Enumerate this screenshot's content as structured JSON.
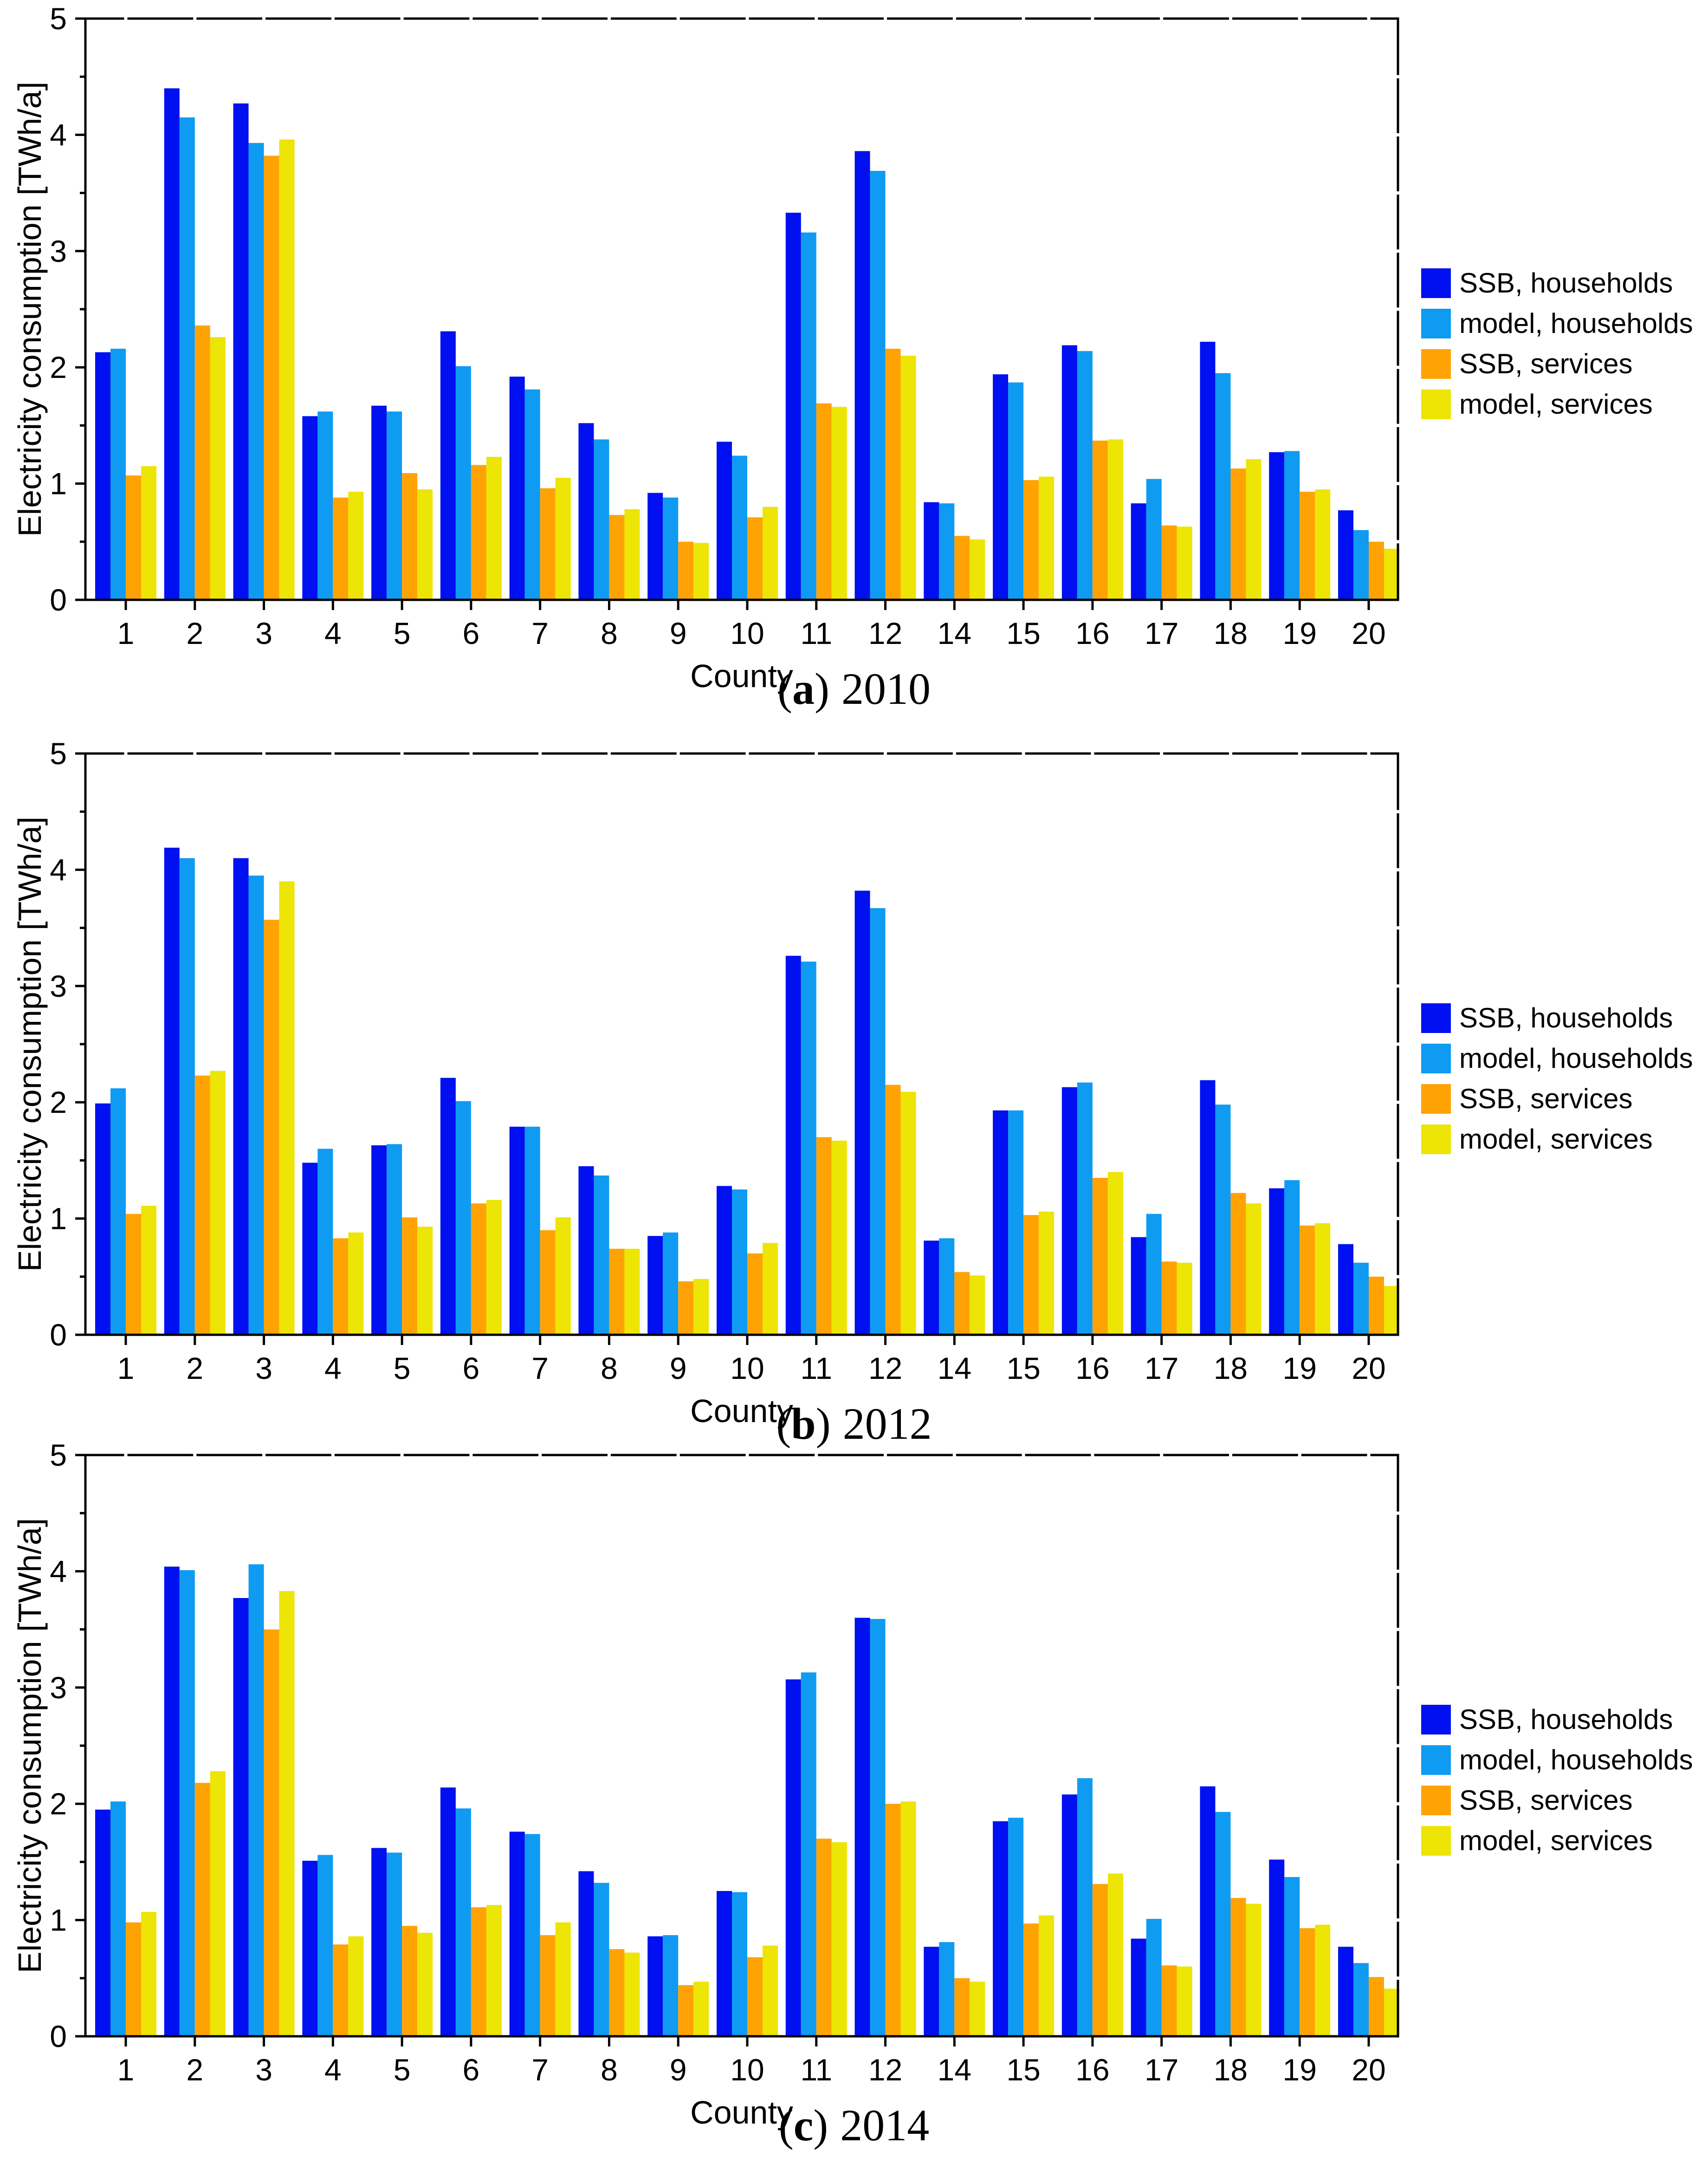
{
  "figure": {
    "background": "#ffffff",
    "axis_color": "#000000"
  },
  "series_colors": {
    "ssb_households": "#0010F0",
    "model_households": "#0F9BF2",
    "ssb_services": "#FFA305",
    "model_services": "#EDE505"
  },
  "chart_data": [
    {
      "type": "bar",
      "caption": {
        "open": "(",
        "letter": "a",
        "close": ")",
        "year": "2010"
      },
      "xlabel": "County",
      "ylabel": "Electricity consumption [TWh/a]",
      "ylim": [
        0,
        5
      ],
      "yticks": [
        0,
        1,
        2,
        3,
        4,
        5
      ],
      "grid": false,
      "legend_position": "right",
      "categories": [
        "1",
        "2",
        "3",
        "4",
        "5",
        "6",
        "7",
        "8",
        "9",
        "10",
        "11",
        "12",
        "14",
        "15",
        "16",
        "17",
        "18",
        "19",
        "20"
      ],
      "series": [
        {
          "name": "SSB, households",
          "color": "#0010F0",
          "values": [
            2.13,
            4.4,
            4.27,
            1.58,
            1.67,
            2.31,
            1.92,
            1.52,
            0.92,
            1.36,
            3.33,
            3.86,
            0.84,
            1.94,
            2.19,
            0.83,
            2.22,
            1.27,
            0.77
          ]
        },
        {
          "name": "model, households",
          "color": "#0F9BF2",
          "values": [
            2.16,
            4.15,
            3.93,
            1.62,
            1.62,
            2.01,
            1.81,
            1.38,
            0.88,
            1.24,
            3.16,
            3.69,
            0.83,
            1.87,
            2.14,
            1.04,
            1.95,
            1.28,
            0.6
          ]
        },
        {
          "name": "SSB, services",
          "color": "#FFA305",
          "values": [
            1.07,
            2.36,
            3.82,
            0.88,
            1.09,
            1.16,
            0.96,
            0.73,
            0.5,
            0.71,
            1.69,
            2.16,
            0.55,
            1.03,
            1.37,
            0.64,
            1.13,
            0.93,
            0.5
          ]
        },
        {
          "name": "model, services",
          "color": "#EDE505",
          "values": [
            1.15,
            2.26,
            3.96,
            0.93,
            0.95,
            1.23,
            1.05,
            0.78,
            0.49,
            0.8,
            1.66,
            2.1,
            0.52,
            1.06,
            1.38,
            0.63,
            1.21,
            0.95,
            0.44
          ]
        }
      ]
    },
    {
      "type": "bar",
      "caption": {
        "open": "(",
        "letter": "b",
        "close": ")",
        "year": "2012"
      },
      "xlabel": "County",
      "ylabel": "Electricity consumption [TWh/a]",
      "ylim": [
        0,
        5
      ],
      "yticks": [
        0,
        1,
        2,
        3,
        4,
        5
      ],
      "grid": false,
      "legend_position": "right",
      "categories": [
        "1",
        "2",
        "3",
        "4",
        "5",
        "6",
        "7",
        "8",
        "9",
        "10",
        "11",
        "12",
        "14",
        "15",
        "16",
        "17",
        "18",
        "19",
        "20"
      ],
      "series": [
        {
          "name": "SSB, households",
          "color": "#0010F0",
          "values": [
            1.99,
            4.19,
            4.1,
            1.48,
            1.63,
            2.21,
            1.79,
            1.45,
            0.85,
            1.28,
            3.26,
            3.82,
            0.81,
            1.93,
            2.13,
            0.84,
            2.19,
            1.26,
            0.78
          ]
        },
        {
          "name": "model, households",
          "color": "#0F9BF2",
          "values": [
            2.12,
            4.1,
            3.95,
            1.6,
            1.64,
            2.01,
            1.79,
            1.37,
            0.88,
            1.25,
            3.21,
            3.67,
            0.83,
            1.93,
            2.17,
            1.04,
            1.98,
            1.33,
            0.62
          ]
        },
        {
          "name": "SSB, services",
          "color": "#FFA305",
          "values": [
            1.04,
            2.23,
            3.57,
            0.83,
            1.01,
            1.13,
            0.9,
            0.74,
            0.46,
            0.7,
            1.7,
            2.15,
            0.54,
            1.03,
            1.35,
            0.63,
            1.22,
            0.94,
            0.5
          ]
        },
        {
          "name": "model, services",
          "color": "#EDE505",
          "values": [
            1.11,
            2.27,
            3.9,
            0.88,
            0.93,
            1.16,
            1.01,
            0.74,
            0.48,
            0.79,
            1.67,
            2.09,
            0.51,
            1.06,
            1.4,
            0.62,
            1.13,
            0.96,
            0.42
          ]
        }
      ]
    },
    {
      "type": "bar",
      "caption": {
        "open": "(",
        "letter": "c",
        "close": ")",
        "year": "2014"
      },
      "xlabel": "County",
      "ylabel": "Electricity consumption [TWh/a]",
      "ylim": [
        0,
        5
      ],
      "yticks": [
        0,
        1,
        2,
        3,
        4,
        5
      ],
      "grid": false,
      "legend_position": "right",
      "categories": [
        "1",
        "2",
        "3",
        "4",
        "5",
        "6",
        "7",
        "8",
        "9",
        "10",
        "11",
        "12",
        "14",
        "15",
        "16",
        "17",
        "18",
        "19",
        "20"
      ],
      "series": [
        {
          "name": "SSB, households",
          "color": "#0010F0",
          "values": [
            1.95,
            4.04,
            3.77,
            1.51,
            1.62,
            2.14,
            1.76,
            1.42,
            0.86,
            1.25,
            3.07,
            3.6,
            0.77,
            1.85,
            2.08,
            0.84,
            2.15,
            1.52,
            0.77
          ]
        },
        {
          "name": "model, households",
          "color": "#0F9BF2",
          "values": [
            2.02,
            4.01,
            4.06,
            1.56,
            1.58,
            1.96,
            1.74,
            1.32,
            0.87,
            1.24,
            3.13,
            3.59,
            0.81,
            1.88,
            2.22,
            1.01,
            1.93,
            1.37,
            0.63
          ]
        },
        {
          "name": "SSB, services",
          "color": "#FFA305",
          "values": [
            0.98,
            2.18,
            3.5,
            0.79,
            0.95,
            1.11,
            0.87,
            0.75,
            0.44,
            0.68,
            1.7,
            2.0,
            0.5,
            0.97,
            1.31,
            0.61,
            1.19,
            0.93,
            0.51
          ]
        },
        {
          "name": "model, services",
          "color": "#EDE505",
          "values": [
            1.07,
            2.28,
            3.83,
            0.86,
            0.89,
            1.13,
            0.98,
            0.72,
            0.47,
            0.78,
            1.67,
            2.02,
            0.47,
            1.04,
            1.4,
            0.6,
            1.14,
            0.96,
            0.41
          ]
        }
      ]
    }
  ]
}
